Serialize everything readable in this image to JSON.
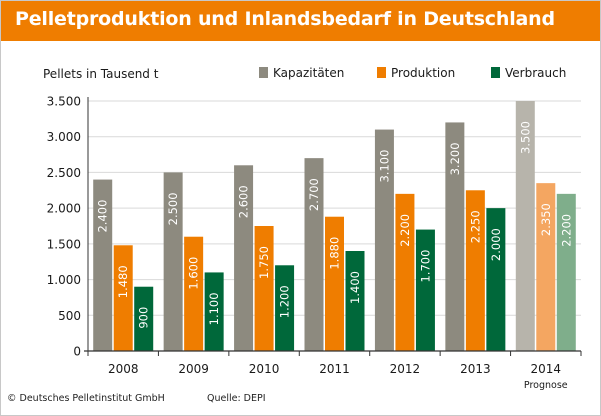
{
  "chart_data": {
    "type": "bar",
    "title": "Pelletproduktion und Inlandsbedarf in Deutschland",
    "ylabel": "Pellets in Tausend t",
    "ylim": [
      0,
      3500
    ],
    "yticks": [
      0,
      500,
      1000,
      1500,
      2000,
      2500,
      3000,
      3500
    ],
    "ytick_labels": [
      "0",
      "500",
      "1.000",
      "1.500",
      "2.000",
      "2.500",
      "3.000",
      "3.500"
    ],
    "grid": true,
    "legend_position": "top-right",
    "categories": [
      "2008",
      "2009",
      "2010",
      "2011",
      "2012",
      "2013",
      "2014"
    ],
    "category_notes": [
      "",
      "",
      "",
      "",
      "",
      "",
      "Prognose"
    ],
    "series": [
      {
        "name": "Kapazitäten",
        "color": "#8d8a7f",
        "forecast_color": "#b7b4ab",
        "values": [
          2400,
          2500,
          2600,
          2700,
          3100,
          3200,
          3500
        ],
        "labels": [
          "2.400",
          "2.500",
          "2.600",
          "2.700",
          "3.100",
          "3.200",
          "3.500"
        ]
      },
      {
        "name": "Produktion",
        "color": "#ef7d00",
        "forecast_color": "#f4a661",
        "values": [
          1480,
          1600,
          1750,
          1880,
          2200,
          2250,
          2350
        ],
        "labels": [
          "1.480",
          "1.600",
          "1.750",
          "1.880",
          "2.200",
          "2.250",
          "2.350"
        ]
      },
      {
        "name": "Verbrauch",
        "color": "#00683a",
        "forecast_color": "#7fae8b",
        "values": [
          900,
          1100,
          1200,
          1400,
          1700,
          2000,
          2200
        ],
        "labels": [
          "900",
          "1.100",
          "1.200",
          "1.400",
          "1.700",
          "2.000",
          "2.200"
        ]
      }
    ]
  },
  "footer": {
    "copyright": "© Deutsches Pelletinstitut GmbH",
    "source": "Quelle: DEPI"
  }
}
